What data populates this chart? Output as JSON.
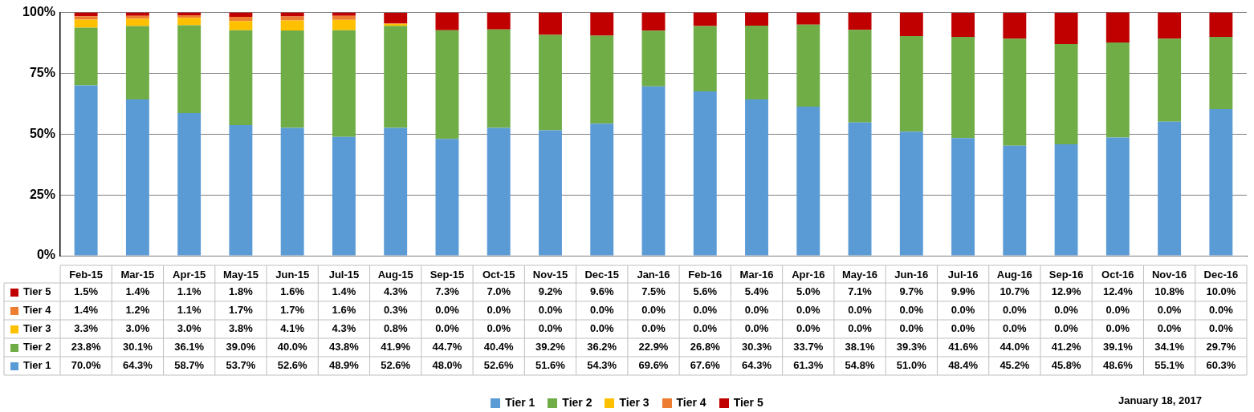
{
  "chart_data": {
    "type": "bar",
    "stacked": true,
    "categories": [
      "Feb-15",
      "Mar-15",
      "Apr-15",
      "May-15",
      "Jun-15",
      "Jul-15",
      "Aug-15",
      "Sep-15",
      "Oct-15",
      "Nov-15",
      "Dec-15",
      "Jan-16",
      "Feb-16",
      "Mar-16",
      "Apr-16",
      "May-16",
      "Jun-16",
      "Jul-16",
      "Aug-16",
      "Sep-16",
      "Oct-16",
      "Nov-16",
      "Dec-16"
    ],
    "series": [
      {
        "name": "Tier 1",
        "color": "#5b9bd5",
        "values": [
          70.0,
          64.3,
          58.7,
          53.7,
          52.6,
          48.9,
          52.6,
          48.0,
          52.6,
          51.6,
          54.3,
          69.6,
          67.6,
          64.3,
          61.3,
          54.8,
          51.0,
          48.4,
          45.2,
          45.8,
          48.6,
          55.1,
          60.3
        ],
        "value_labels": [
          "70.0%",
          "64.3%",
          "58.7%",
          "53.7%",
          "52.6%",
          "48.9%",
          "52.6%",
          "48.0%",
          "52.6%",
          "51.6%",
          "54.3%",
          "69.6%",
          "67.6%",
          "64.3%",
          "61.3%",
          "54.8%",
          "51.0%",
          "48.4%",
          "45.2%",
          "45.8%",
          "48.6%",
          "55.1%",
          "60.3%"
        ]
      },
      {
        "name": "Tier 2",
        "color": "#70ad47",
        "values": [
          23.8,
          30.1,
          36.1,
          39.0,
          40.0,
          43.8,
          41.9,
          44.7,
          40.4,
          39.2,
          36.2,
          22.9,
          26.8,
          30.3,
          33.7,
          38.1,
          39.3,
          41.6,
          44.0,
          41.2,
          39.1,
          34.1,
          29.7
        ],
        "value_labels": [
          "23.8%",
          "30.1%",
          "36.1%",
          "39.0%",
          "40.0%",
          "43.8%",
          "41.9%",
          "44.7%",
          "40.4%",
          "39.2%",
          "36.2%",
          "22.9%",
          "26.8%",
          "30.3%",
          "33.7%",
          "38.1%",
          "39.3%",
          "41.6%",
          "44.0%",
          "41.2%",
          "39.1%",
          "34.1%",
          "29.7%"
        ]
      },
      {
        "name": "Tier 3",
        "color": "#ffc000",
        "values": [
          3.3,
          3.0,
          3.0,
          3.8,
          4.1,
          4.3,
          0.8,
          0.0,
          0.0,
          0.0,
          0.0,
          0.0,
          0.0,
          0.0,
          0.0,
          0.0,
          0.0,
          0.0,
          0.0,
          0.0,
          0.0,
          0.0,
          0.0
        ],
        "value_labels": [
          "3.3%",
          "3.0%",
          "3.0%",
          "3.8%",
          "4.1%",
          "4.3%",
          "0.8%",
          "0.0%",
          "0.0%",
          "0.0%",
          "0.0%",
          "0.0%",
          "0.0%",
          "0.0%",
          "0.0%",
          "0.0%",
          "0.0%",
          "0.0%",
          "0.0%",
          "0.0%",
          "0.0%",
          "0.0%",
          "0.0%"
        ]
      },
      {
        "name": "Tier 4",
        "color": "#ed7d31",
        "values": [
          1.4,
          1.2,
          1.1,
          1.7,
          1.7,
          1.6,
          0.3,
          0.0,
          0.0,
          0.0,
          0.0,
          0.0,
          0.0,
          0.0,
          0.0,
          0.0,
          0.0,
          0.0,
          0.0,
          0.0,
          0.0,
          0.0,
          0.0
        ],
        "value_labels": [
          "1.4%",
          "1.2%",
          "1.1%",
          "1.7%",
          "1.7%",
          "1.6%",
          "0.3%",
          "0.0%",
          "0.0%",
          "0.0%",
          "0.0%",
          "0.0%",
          "0.0%",
          "0.0%",
          "0.0%",
          "0.0%",
          "0.0%",
          "0.0%",
          "0.0%",
          "0.0%",
          "0.0%",
          "0.0%",
          "0.0%"
        ]
      },
      {
        "name": "Tier 5",
        "color": "#c00000",
        "values": [
          1.5,
          1.4,
          1.1,
          1.8,
          1.6,
          1.4,
          4.3,
          7.3,
          7.0,
          9.2,
          9.6,
          7.5,
          5.6,
          5.4,
          5.0,
          7.1,
          9.7,
          9.9,
          10.7,
          12.9,
          12.4,
          10.8,
          10.0
        ],
        "value_labels": [
          "1.5%",
          "1.4%",
          "1.1%",
          "1.8%",
          "1.6%",
          "1.4%",
          "4.3%",
          "7.3%",
          "7.0%",
          "9.2%",
          "9.6%",
          "7.5%",
          "5.6%",
          "5.4%",
          "5.0%",
          "7.1%",
          "9.7%",
          "9.9%",
          "10.7%",
          "12.9%",
          "12.4%",
          "10.8%",
          "10.0%"
        ]
      }
    ],
    "ylim": [
      0,
      100
    ],
    "yticks": [
      {
        "value": 0,
        "label": "0%"
      },
      {
        "value": 25,
        "label": "25%"
      },
      {
        "value": 50,
        "label": "50%"
      },
      {
        "value": 75,
        "label": "75%"
      },
      {
        "value": 100,
        "label": "100%"
      }
    ],
    "grid": "y",
    "legend": "bottom",
    "annotations": [
      "January 18, 2017"
    ]
  }
}
